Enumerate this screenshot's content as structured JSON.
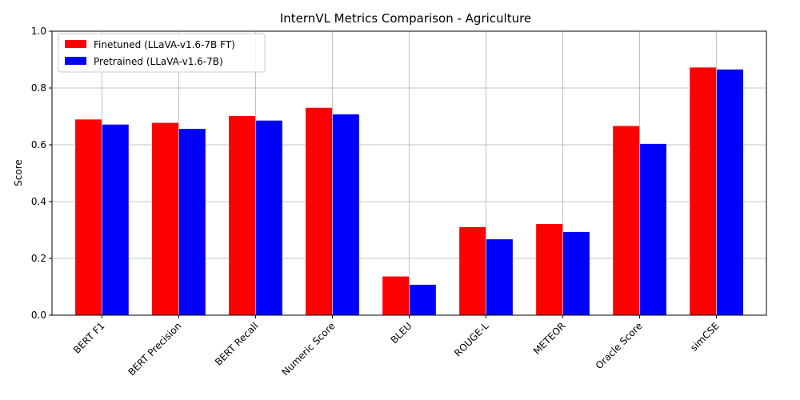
{
  "chart_data": {
    "type": "bar",
    "title": "InternVL Metrics Comparison - Agriculture",
    "xlabel": "",
    "ylabel": "Score",
    "ylim": [
      0,
      1.0
    ],
    "yticks": [
      "0.0",
      "0.2",
      "0.4",
      "0.6",
      "0.8",
      "1.0"
    ],
    "grid": true,
    "legend_position": "top-left",
    "categories": [
      "BERT F1",
      "BERT Precision",
      "BERT Recall",
      "Numeric Score",
      "BLEU",
      "ROUGE-L",
      "METEOR",
      "Oracle Score",
      "simCSE"
    ],
    "series": [
      {
        "name": "Finetuned (LLaVA-v1.6-7B FT)",
        "color": "#ff0000",
        "values": [
          0.69,
          0.678,
          0.702,
          0.731,
          0.137,
          0.311,
          0.322,
          0.667,
          0.873
        ]
      },
      {
        "name": "Pretrained (LLaVA-v1.6-7B)",
        "color": "#0000ff",
        "values": [
          0.672,
          0.657,
          0.686,
          0.708,
          0.108,
          0.268,
          0.294,
          0.604,
          0.866
        ]
      }
    ]
  }
}
